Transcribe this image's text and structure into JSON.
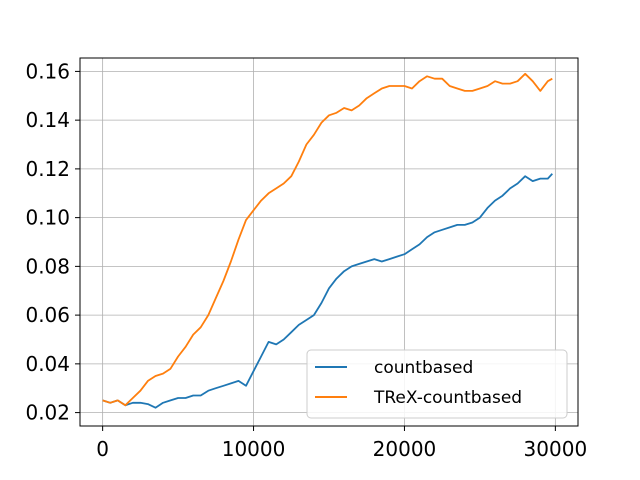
{
  "chart_data": {
    "type": "line",
    "title": "",
    "xlabel": "",
    "ylabel": "",
    "xlim": [
      -1500,
      31500
    ],
    "ylim": [
      0.0145,
      0.1655
    ],
    "xticks": [
      0,
      10000,
      20000,
      30000
    ],
    "xtick_labels": [
      "0",
      "10000",
      "20000",
      "30000"
    ],
    "yticks": [
      0.02,
      0.04,
      0.06,
      0.08,
      0.1,
      0.12,
      0.14,
      0.16
    ],
    "ytick_labels": [
      "0.02",
      "0.04",
      "0.06",
      "0.08",
      "0.10",
      "0.12",
      "0.14",
      "0.16"
    ],
    "grid": true,
    "legend_position": "lower-right",
    "series": [
      {
        "name": "countbased",
        "color": "#1f77b4",
        "x": [
          0,
          500,
          1000,
          1500,
          2000,
          2500,
          3000,
          3500,
          4000,
          4500,
          5000,
          5500,
          6000,
          6500,
          7000,
          7500,
          8000,
          8500,
          9000,
          9500,
          10000,
          10500,
          11000,
          11500,
          12000,
          12500,
          13000,
          13500,
          14000,
          14500,
          15000,
          15500,
          16000,
          16500,
          17000,
          17500,
          18000,
          18500,
          19000,
          19500,
          20000,
          20500,
          21000,
          21500,
          22000,
          22500,
          23000,
          23500,
          24000,
          24500,
          25000,
          25500,
          26000,
          26500,
          27000,
          27500,
          28000,
          28500,
          29000,
          29500,
          29800
        ],
        "values": [
          0.025,
          0.024,
          0.025,
          0.023,
          0.024,
          0.024,
          0.0235,
          0.022,
          0.024,
          0.025,
          0.026,
          0.026,
          0.027,
          0.027,
          0.029,
          0.03,
          0.031,
          0.032,
          0.033,
          0.031,
          0.037,
          0.043,
          0.049,
          0.048,
          0.05,
          0.053,
          0.056,
          0.058,
          0.06,
          0.065,
          0.071,
          0.075,
          0.078,
          0.08,
          0.081,
          0.082,
          0.083,
          0.082,
          0.083,
          0.084,
          0.085,
          0.087,
          0.089,
          0.092,
          0.094,
          0.095,
          0.096,
          0.097,
          0.097,
          0.098,
          0.1,
          0.104,
          0.107,
          0.109,
          0.112,
          0.114,
          0.117,
          0.115,
          0.116,
          0.116,
          0.118
        ]
      },
      {
        "name": "TReX-countbased",
        "color": "#ff7f0e",
        "x": [
          0,
          500,
          1000,
          1500,
          2000,
          2500,
          3000,
          3500,
          4000,
          4500,
          5000,
          5500,
          6000,
          6500,
          7000,
          7500,
          8000,
          8500,
          9000,
          9500,
          10000,
          10500,
          11000,
          11500,
          12000,
          12500,
          13000,
          13500,
          14000,
          14500,
          15000,
          15500,
          16000,
          16500,
          17000,
          17500,
          18000,
          18500,
          19000,
          19500,
          20000,
          20500,
          21000,
          21500,
          22000,
          22500,
          23000,
          23500,
          24000,
          24500,
          25000,
          25500,
          26000,
          26500,
          27000,
          27500,
          28000,
          28500,
          29000,
          29500,
          29800
        ],
        "values": [
          0.025,
          0.024,
          0.025,
          0.023,
          0.026,
          0.029,
          0.033,
          0.035,
          0.036,
          0.038,
          0.043,
          0.047,
          0.052,
          0.055,
          0.06,
          0.067,
          0.074,
          0.082,
          0.091,
          0.099,
          0.103,
          0.107,
          0.11,
          0.112,
          0.114,
          0.117,
          0.123,
          0.13,
          0.134,
          0.139,
          0.142,
          0.143,
          0.145,
          0.144,
          0.146,
          0.149,
          0.151,
          0.153,
          0.154,
          0.154,
          0.154,
          0.153,
          0.156,
          0.158,
          0.157,
          0.157,
          0.154,
          0.153,
          0.152,
          0.152,
          0.153,
          0.154,
          0.156,
          0.155,
          0.155,
          0.156,
          0.159,
          0.156,
          0.152,
          0.156,
          0.157
        ]
      }
    ]
  }
}
